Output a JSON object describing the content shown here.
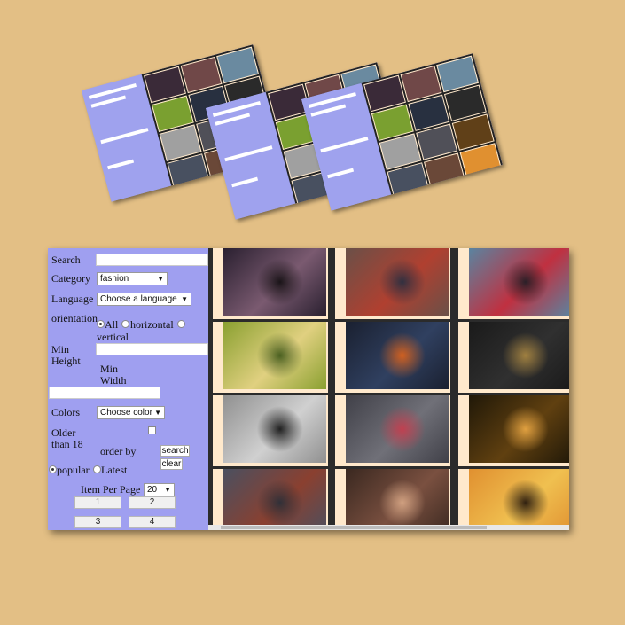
{
  "thumbnails": [
    {
      "kind": "screenshot-preview-1"
    },
    {
      "kind": "screenshot-preview-2"
    },
    {
      "kind": "screenshot-preview-3"
    }
  ],
  "filters": {
    "search_label": "Search",
    "search_value": "",
    "category_label": "Category",
    "category_value": "fashion",
    "language_label": "Language",
    "language_value": "Choose a language",
    "orientation_label": "orientation",
    "orientation_all": "All",
    "orientation_horizontal": "horizontal",
    "orientation_vertical": "vertical",
    "orientation_selected": "All",
    "min_height_label_1": "Min",
    "min_height_label_2": "Height",
    "min_width_label_1": "Min",
    "min_width_label_2": "Width",
    "colors_label": "Colors",
    "colors_value": "Choose color",
    "older_label_1": "Older",
    "older_label_2": "than 18",
    "older_checked": false,
    "order_by_label": "order by",
    "order_popular": "popular",
    "order_latest": "Latest",
    "order_selected": "popular",
    "search_button": "search",
    "clear_button": "clear",
    "items_per_page_label": "Item Per Page",
    "items_per_page_value": "20"
  },
  "pagination": {
    "pages": [
      "1",
      "2",
      "3",
      "4"
    ],
    "current": "1"
  },
  "gallery": {
    "images": [
      {
        "name": "figure-in-dark-window-room",
        "colors": [
          "#2a2030",
          "#7a5a70",
          "#1a1418"
        ]
      },
      {
        "name": "rolled-colorful-ties",
        "colors": [
          "#6a5048",
          "#b04030",
          "#303040"
        ]
      },
      {
        "name": "rolled-ties-closeup",
        "colors": [
          "#5a84a0",
          "#c03040",
          "#2a2028"
        ]
      },
      {
        "name": "woman-in-flower-field",
        "colors": [
          "#8aa030",
          "#e0d080",
          "#4a6020"
        ]
      },
      {
        "name": "woman-with-lantern-night",
        "colors": [
          "#1a2030",
          "#304060",
          "#d06020"
        ]
      },
      {
        "name": "golden-ring-on-dark",
        "colors": [
          "#1a1a1a",
          "#303030",
          "#a08040"
        ]
      },
      {
        "name": "woman-hair-black-white",
        "colors": [
          "#909090",
          "#d0d0d0",
          "#202020"
        ]
      },
      {
        "name": "woman-taking-photo-hat",
        "colors": [
          "#404048",
          "#707078",
          "#c04050"
        ]
      },
      {
        "name": "girl-reading-glowing-book",
        "colors": [
          "#201808",
          "#604010",
          "#e0a040"
        ]
      },
      {
        "name": "camera-and-ties",
        "colors": [
          "#4a5060",
          "#8a4030",
          "#303038"
        ]
      },
      {
        "name": "hands-holding-phone-camera",
        "colors": [
          "#3a2820",
          "#7a5040",
          "#d0a080"
        ]
      },
      {
        "name": "cyclist-sunset",
        "colors": [
          "#e09030",
          "#f0c050",
          "#302010"
        ]
      }
    ]
  }
}
